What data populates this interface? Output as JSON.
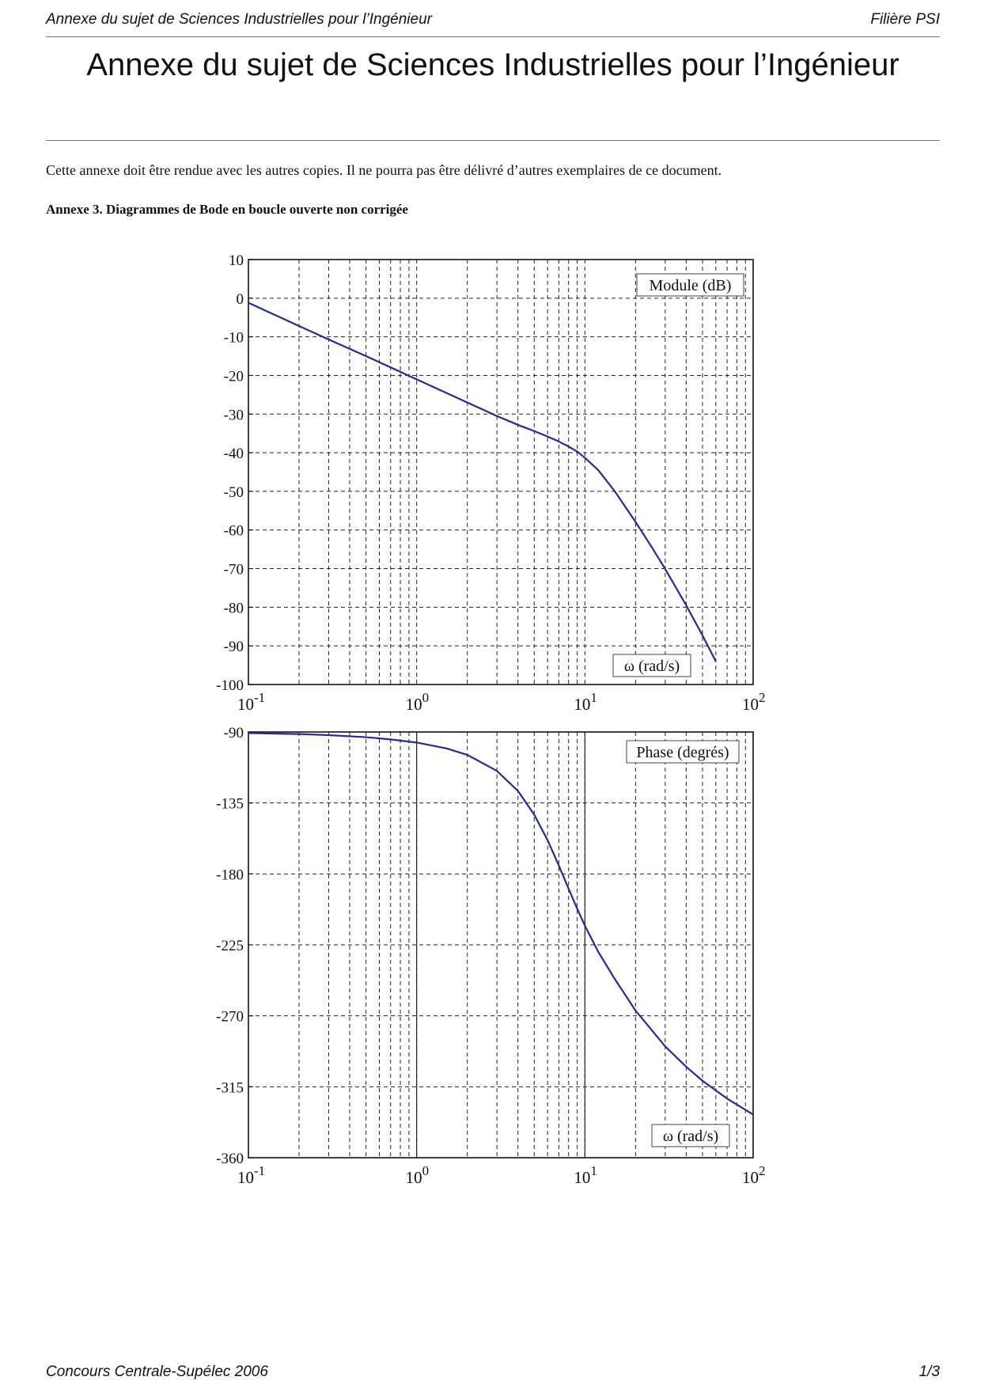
{
  "header": {
    "left": "Annexe du sujet de Sciences Industrielles pour l’Ingénieur",
    "right": "Filière PSI"
  },
  "document": {
    "title": "Annexe du sujet de Sciences Industrielles pour l’Ingénieur",
    "intro": "Cette annexe doit être rendue avec les autres copies. Il ne pourra pas être délivré d’autres exemplaires de ce document.",
    "annex_heading": "Annexe 3. Diagrammes de Bode en boucle ouverte non corrigée"
  },
  "footer": {
    "left": "Concours Centrale-Supélec 2006",
    "right": "1/3"
  },
  "chart_data": [
    {
      "type": "line",
      "legend_label": "Module (dB)",
      "axis_label": "ω (rad/s)",
      "x_scale": "log",
      "xlim": [
        0.1,
        100
      ],
      "ylim": [
        -100,
        10
      ],
      "x_tick_labels": [
        {
          "base": "10",
          "exp": "-1"
        },
        {
          "base": "10",
          "exp": "0"
        },
        {
          "base": "10",
          "exp": "1"
        },
        {
          "base": "10",
          "exp": "2"
        }
      ],
      "y_ticks": [
        10,
        0,
        -10,
        -20,
        -30,
        -40,
        -50,
        -60,
        -70,
        -80,
        -90,
        -100
      ],
      "grid": true,
      "line_color": "#2a2a8c",
      "series": [
        {
          "x": [
            0.1,
            0.2,
            0.3,
            0.5,
            1,
            2,
            3,
            4,
            5,
            6,
            7,
            8,
            9,
            10,
            12,
            15,
            20,
            25,
            30,
            40,
            50,
            60
          ],
          "values": [
            -1.2,
            -7.2,
            -10.7,
            -15,
            -21,
            -27,
            -30.5,
            -32.8,
            -34.4,
            -35.8,
            -37.1,
            -38.4,
            -39.7,
            -41.3,
            -44.5,
            -49.9,
            -57.9,
            -64.5,
            -70.1,
            -79.5,
            -87.3,
            -94
          ]
        }
      ]
    },
    {
      "type": "line",
      "legend_label": "Phase (degrés)",
      "axis_label": "ω (rad/s)",
      "x_scale": "log",
      "xlim": [
        0.1,
        100
      ],
      "ylim": [
        -360,
        -90
      ],
      "x_tick_labels": [
        {
          "base": "10",
          "exp": "-1"
        },
        {
          "base": "10",
          "exp": "0"
        },
        {
          "base": "10",
          "exp": "1"
        },
        {
          "base": "10",
          "exp": "2"
        }
      ],
      "y_ticks": [
        -90,
        -135,
        -180,
        -225,
        -270,
        -315,
        -360
      ],
      "grid": true,
      "line_color": "#2a2a8c",
      "series": [
        {
          "x": [
            0.1,
            0.2,
            0.3,
            0.5,
            0.7,
            1,
            1.5,
            2,
            3,
            4,
            5,
            6,
            7,
            8,
            9,
            10,
            12,
            15,
            20,
            30,
            40,
            50,
            70,
            100
          ],
          "values": [
            -90.7,
            -91.3,
            -92,
            -93.3,
            -94.7,
            -96.7,
            -100.4,
            -104.5,
            -114.7,
            -127.4,
            -142.5,
            -158.6,
            -174.7,
            -189.4,
            -202.1,
            -212.9,
            -229.4,
            -246.4,
            -266.7,
            -289.4,
            -302.3,
            -311.2,
            -322.5,
            -332.6
          ]
        }
      ]
    }
  ]
}
